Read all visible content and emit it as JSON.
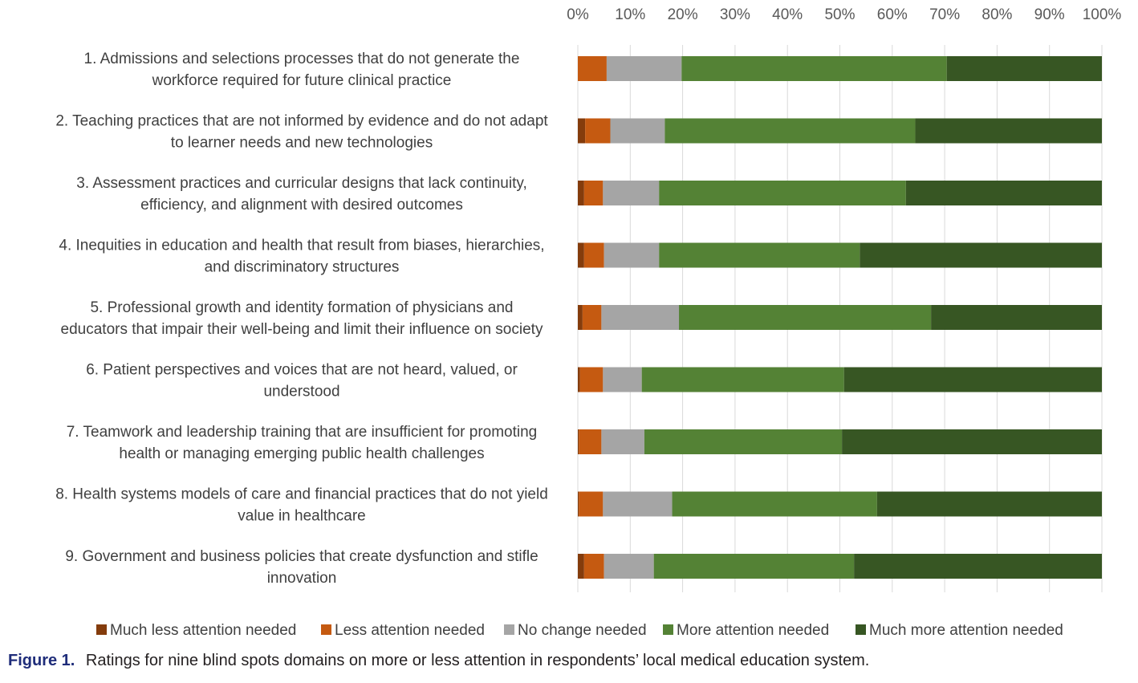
{
  "chart_data": {
    "type": "bar",
    "orientation": "horizontal",
    "stacked": "percent",
    "categories": [
      [
        "1. Admissions and selections processes that do not generate the",
        "workforce required for future clinical practice"
      ],
      [
        "2. Teaching practices that are not informed by evidence and do not adapt",
        "to learner needs and new technologies"
      ],
      [
        "3. Assessment practices and curricular designs that lack continuity,",
        "efficiency, and alignment with desired outcomes"
      ],
      [
        "4. Inequities in education and health that result from biases, hierarchies,",
        "and discriminatory structures"
      ],
      [
        "5. Professional growth and identity formation of physicians and",
        "educators that impair their well-being and limit their influence on society"
      ],
      [
        "6. Patient perspectives and voices that are not heard, valued, or",
        "understood"
      ],
      [
        "7. Teamwork and leadership training that are insufficient for promoting",
        "health or managing emerging public health challenges"
      ],
      [
        "8. Health systems models of care and financial practices that do not yield",
        "value in healthcare"
      ],
      [
        "9. Government and business policies that create dysfunction and stifle",
        "innovation"
      ]
    ],
    "series": [
      {
        "name": "Much less attention needed",
        "color": "#843c0c",
        "values": [
          0.0,
          1.4,
          1.2,
          1.2,
          0.9,
          0.4,
          0.2,
          0.2,
          1.2
        ]
      },
      {
        "name": "Less attention needed",
        "color": "#c55a11",
        "values": [
          5.5,
          4.8,
          3.6,
          3.8,
          3.6,
          4.4,
          4.3,
          4.6,
          3.8
        ]
      },
      {
        "name": "No change needed",
        "color": "#a5a5a5",
        "values": [
          14.3,
          10.4,
          10.7,
          10.5,
          14.8,
          7.4,
          8.2,
          13.2,
          9.5
        ]
      },
      {
        "name": "More attention needed",
        "color": "#548235",
        "values": [
          50.6,
          47.8,
          47.1,
          38.3,
          48.1,
          38.6,
          37.7,
          39.1,
          38.2
        ]
      },
      {
        "name": "Much more attention needed",
        "color": "#375623",
        "values": [
          29.6,
          35.6,
          37.4,
          46.2,
          32.6,
          49.2,
          49.6,
          42.9,
          47.3
        ]
      }
    ],
    "xlim": [
      0,
      100
    ],
    "x_ticks": [
      "0%",
      "10%",
      "20%",
      "30%",
      "40%",
      "50%",
      "60%",
      "70%",
      "80%",
      "90%",
      "100%"
    ],
    "x_axis_position": "top",
    "legend_position": "bottom",
    "xlabel": "",
    "ylabel": "",
    "title": ""
  },
  "caption": {
    "label": "Figure 1.",
    "text": "Ratings for nine blind spots domains on more or less attention in respondents’ local medical education system."
  }
}
